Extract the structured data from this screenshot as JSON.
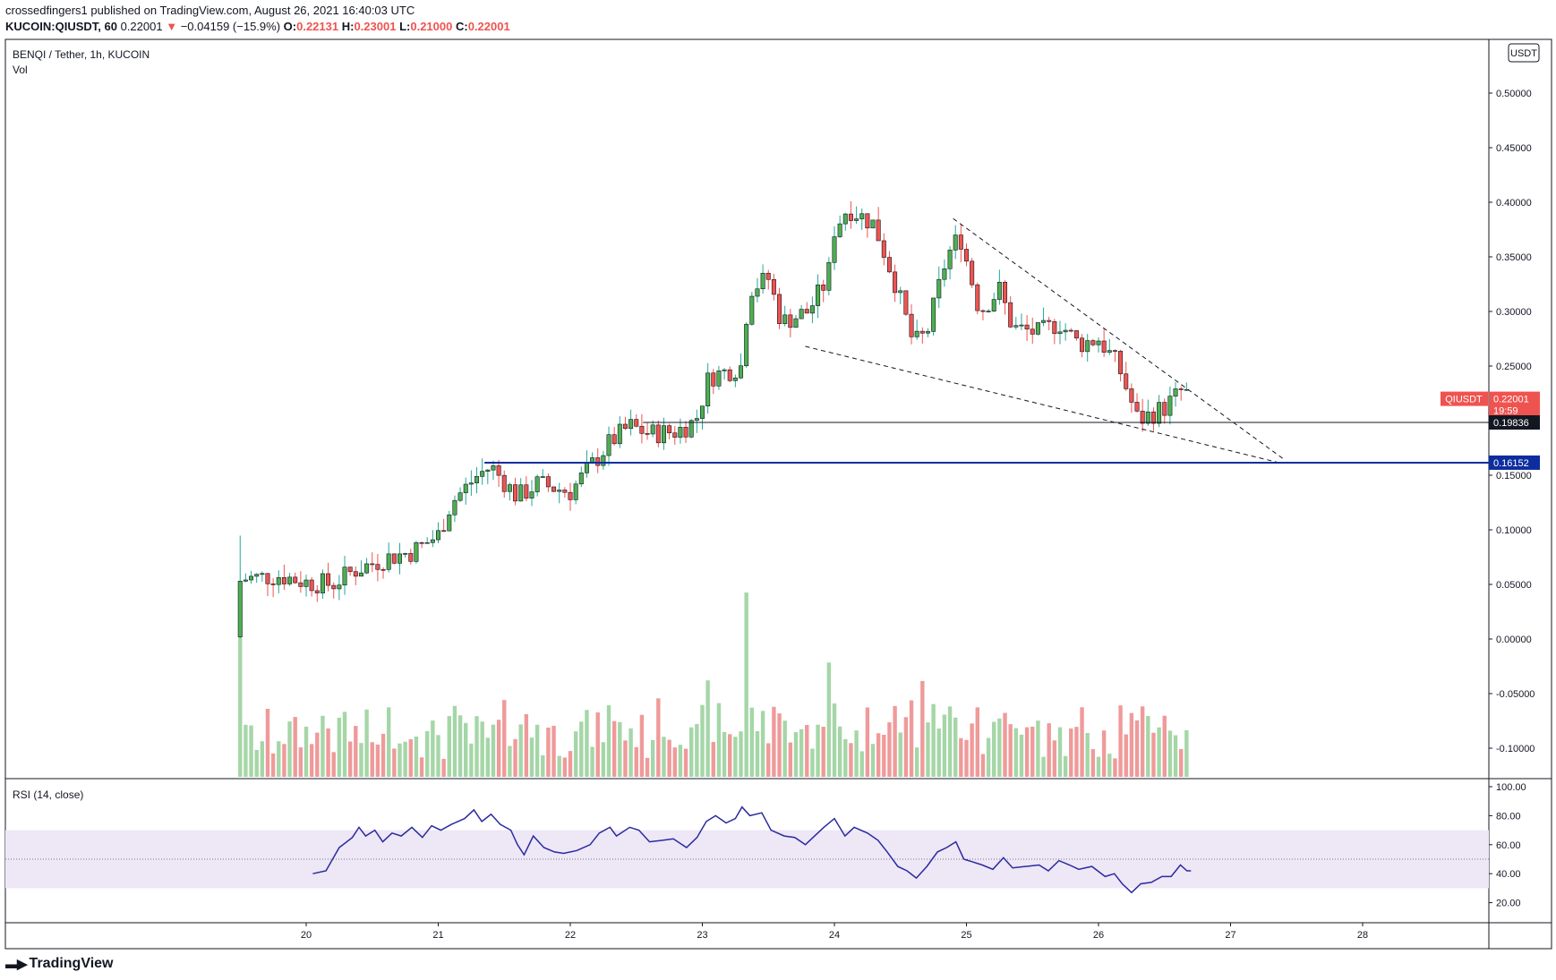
{
  "header": {
    "publish_line": "crossedfingers1 published on TradingView.com, August 26, 2021 16:40:03 UTC",
    "symbol_line": "KUCOIN:QIUSDT, 60",
    "last": "0.22001",
    "change_arrow": "▼",
    "change": "−0.04159 (−15.9%)",
    "o_label": "O:",
    "o": "0.22131",
    "h_label": "H:",
    "h": "0.23001",
    "l_label": "L:",
    "l": "0.21000",
    "c_label": "C:",
    "c": "0.22001"
  },
  "legend": {
    "title": "BENQI / Tether, 1h, KUCOIN",
    "vol": "Vol",
    "rsi": "RSI (14, close)"
  },
  "price_axis": {
    "currency": "USDT",
    "ticks": [
      "0.50000",
      "0.45000",
      "0.40000",
      "0.35000",
      "0.30000",
      "0.25000",
      "0.20000",
      "0.15000",
      "0.10000",
      "0.05000",
      "0.00000",
      "-0.05000",
      "-0.10000"
    ]
  },
  "rsi_axis": {
    "ticks": [
      "100.00",
      "80.00",
      "60.00",
      "40.00",
      "20.00"
    ]
  },
  "time_axis": {
    "ticks": [
      "20",
      "21",
      "22",
      "23",
      "24",
      "25",
      "26",
      "27",
      "28"
    ]
  },
  "price_badges": {
    "last_symbol": "QIUSDT",
    "last_price": "0.22001",
    "countdown": "19:59",
    "line1_price": "0.19836",
    "line2_price": "0.16152"
  },
  "colors": {
    "up": "#26a69a",
    "up_body": "#4caf50",
    "down": "#ef5350",
    "vol_up": "#a5d6a7",
    "vol_down": "#ef9a9a",
    "blue_line": "#0d2d9e",
    "rsi_line": "#2a2a9e",
    "rsi_band": "#ede7f6"
  },
  "footer": {
    "brand": "TradingView"
  },
  "chart_data": [
    {
      "type": "candlestick",
      "title": "BENQI / Tether, 1h, KUCOIN",
      "ylim": [
        -0.13,
        0.53
      ],
      "x_range_days": [
        19.45,
        28.95
      ],
      "x_ticks": [
        20,
        21,
        22,
        23,
        24,
        25,
        26,
        27,
        28
      ],
      "anchors": [
        {
          "x": 19.5,
          "y": 0.05
        },
        {
          "x": 19.52,
          "y": 0.055
        },
        {
          "x": 19.8,
          "y": 0.058
        },
        {
          "x": 20.0,
          "y": 0.052
        },
        {
          "x": 20.2,
          "y": 0.05
        },
        {
          "x": 20.35,
          "y": 0.062
        },
        {
          "x": 20.6,
          "y": 0.074
        },
        {
          "x": 20.8,
          "y": 0.08
        },
        {
          "x": 21.0,
          "y": 0.095
        },
        {
          "x": 21.1,
          "y": 0.125
        },
        {
          "x": 21.3,
          "y": 0.15
        },
        {
          "x": 21.4,
          "y": 0.158
        },
        {
          "x": 21.6,
          "y": 0.13
        },
        {
          "x": 21.75,
          "y": 0.142
        },
        {
          "x": 22.0,
          "y": 0.135
        },
        {
          "x": 22.1,
          "y": 0.15
        },
        {
          "x": 22.3,
          "y": 0.18
        },
        {
          "x": 22.45,
          "y": 0.195
        },
        {
          "x": 22.6,
          "y": 0.188
        },
        {
          "x": 22.8,
          "y": 0.19
        },
        {
          "x": 22.95,
          "y": 0.2
        },
        {
          "x": 23.05,
          "y": 0.24
        },
        {
          "x": 23.3,
          "y": 0.25
        },
        {
          "x": 23.35,
          "y": 0.32
        },
        {
          "x": 23.5,
          "y": 0.33
        },
        {
          "x": 23.6,
          "y": 0.29
        },
        {
          "x": 23.8,
          "y": 0.3
        },
        {
          "x": 23.95,
          "y": 0.33
        },
        {
          "x": 24.0,
          "y": 0.375
        },
        {
          "x": 24.1,
          "y": 0.395
        },
        {
          "x": 24.3,
          "y": 0.38
        },
        {
          "x": 24.45,
          "y": 0.33
        },
        {
          "x": 24.6,
          "y": 0.27
        },
        {
          "x": 24.7,
          "y": 0.28
        },
        {
          "x": 24.85,
          "y": 0.35
        },
        {
          "x": 24.95,
          "y": 0.37
        },
        {
          "x": 25.1,
          "y": 0.3
        },
        {
          "x": 25.25,
          "y": 0.32
        },
        {
          "x": 25.35,
          "y": 0.285
        },
        {
          "x": 25.55,
          "y": 0.28
        },
        {
          "x": 25.7,
          "y": 0.29
        },
        {
          "x": 25.85,
          "y": 0.27
        },
        {
          "x": 26.0,
          "y": 0.275
        },
        {
          "x": 26.15,
          "y": 0.25
        },
        {
          "x": 26.3,
          "y": 0.2
        },
        {
          "x": 26.5,
          "y": 0.212
        },
        {
          "x": 26.65,
          "y": 0.23
        },
        {
          "x": 26.68,
          "y": 0.22
        }
      ],
      "levels": [
        {
          "label": "0.19836",
          "value": 0.19836,
          "x_start": 22.55
        },
        {
          "label": "0.16152",
          "value": 0.16152,
          "x_start": 21.35
        }
      ],
      "trendlines": [
        {
          "from": [
            24.9,
            0.385
          ],
          "to": [
            27.4,
            0.165
          ],
          "style": "dashed"
        },
        {
          "from": [
            23.78,
            0.268
          ],
          "to": [
            27.35,
            0.162
          ],
          "style": "dashed"
        }
      ],
      "last_price": 0.22001
    },
    {
      "type": "bar",
      "title": "Vol",
      "note": "volume histogram, relative heights (0-1)",
      "relative_range": [
        0,
        1
      ],
      "spikes": [
        {
          "x": 19.5,
          "h": 0.92
        },
        {
          "x": 23.32,
          "h": 1.0
        },
        {
          "x": 23.95,
          "h": 0.62
        },
        {
          "x": 24.65,
          "h": 0.52
        }
      ]
    },
    {
      "type": "line",
      "title": "RSI (14, close)",
      "ylim": [
        10,
        105
      ],
      "band": [
        30,
        70
      ],
      "midline": 50,
      "points": [
        [
          20.05,
          40
        ],
        [
          20.15,
          42
        ],
        [
          20.25,
          58
        ],
        [
          20.35,
          65
        ],
        [
          20.4,
          72
        ],
        [
          20.45,
          66
        ],
        [
          20.52,
          70
        ],
        [
          20.58,
          62
        ],
        [
          20.65,
          68
        ],
        [
          20.72,
          66
        ],
        [
          20.8,
          72
        ],
        [
          20.88,
          65
        ],
        [
          20.95,
          73
        ],
        [
          21.02,
          70
        ],
        [
          21.1,
          74
        ],
        [
          21.2,
          78
        ],
        [
          21.27,
          84
        ],
        [
          21.33,
          76
        ],
        [
          21.4,
          81
        ],
        [
          21.47,
          74
        ],
        [
          21.55,
          70
        ],
        [
          21.6,
          60
        ],
        [
          21.65,
          53
        ],
        [
          21.72,
          66
        ],
        [
          21.8,
          58
        ],
        [
          21.88,
          55
        ],
        [
          21.95,
          54
        ],
        [
          22.05,
          56
        ],
        [
          22.15,
          60
        ],
        [
          22.22,
          68
        ],
        [
          22.3,
          72
        ],
        [
          22.35,
          66
        ],
        [
          22.45,
          72
        ],
        [
          22.52,
          70
        ],
        [
          22.6,
          62
        ],
        [
          22.7,
          63
        ],
        [
          22.78,
          64
        ],
        [
          22.88,
          58
        ],
        [
          22.96,
          65
        ],
        [
          23.03,
          76
        ],
        [
          23.1,
          80
        ],
        [
          23.18,
          75
        ],
        [
          23.25,
          78
        ],
        [
          23.3,
          86
        ],
        [
          23.36,
          80
        ],
        [
          23.45,
          82
        ],
        [
          23.52,
          70
        ],
        [
          23.62,
          66
        ],
        [
          23.7,
          65
        ],
        [
          23.78,
          60
        ],
        [
          23.85,
          66
        ],
        [
          23.92,
          72
        ],
        [
          24.0,
          78
        ],
        [
          24.08,
          66
        ],
        [
          24.15,
          72
        ],
        [
          24.25,
          68
        ],
        [
          24.33,
          63
        ],
        [
          24.4,
          55
        ],
        [
          24.48,
          45
        ],
        [
          24.55,
          42
        ],
        [
          24.62,
          37
        ],
        [
          24.7,
          45
        ],
        [
          24.78,
          55
        ],
        [
          24.85,
          58
        ],
        [
          24.92,
          62
        ],
        [
          24.98,
          50
        ],
        [
          25.05,
          48
        ],
        [
          25.12,
          46
        ],
        [
          25.2,
          43
        ],
        [
          25.28,
          51
        ],
        [
          25.35,
          44
        ],
        [
          25.45,
          45
        ],
        [
          25.55,
          46
        ],
        [
          25.62,
          42
        ],
        [
          25.7,
          49
        ],
        [
          25.78,
          46
        ],
        [
          25.85,
          43
        ],
        [
          25.95,
          45
        ],
        [
          26.05,
          38
        ],
        [
          26.12,
          40
        ],
        [
          26.18,
          33
        ],
        [
          26.25,
          27
        ],
        [
          26.32,
          33
        ],
        [
          26.4,
          34
        ],
        [
          26.48,
          38
        ],
        [
          26.55,
          38
        ],
        [
          26.62,
          46
        ],
        [
          26.67,
          42
        ],
        [
          26.7,
          42
        ]
      ]
    }
  ]
}
